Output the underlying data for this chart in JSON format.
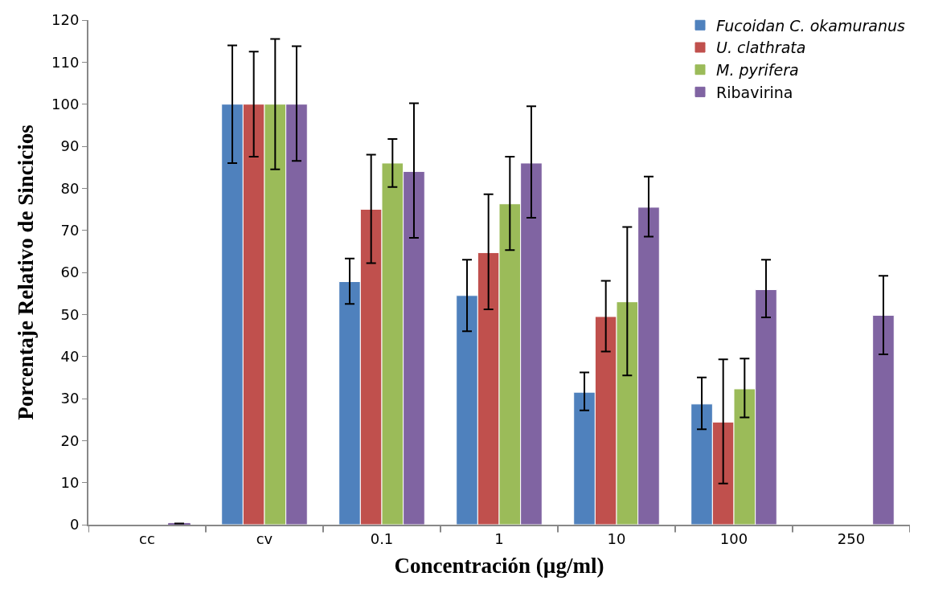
{
  "chart_data": {
    "type": "bar",
    "xlabel": "Concentración (µg/ml)",
    "ylabel": "Porcentaje Relativo de Sincicios",
    "categories": [
      "cc",
      "cv",
      "0.1",
      "1",
      "10",
      "100",
      "250"
    ],
    "series": [
      {
        "name": "Fucoidan C. okamuranus",
        "color": "#4f81bd",
        "values": [
          null,
          100,
          57.8,
          54.5,
          31.5,
          28.7,
          null
        ],
        "errors": [
          null,
          [
            86,
            114
          ],
          [
            52.5,
            63.3
          ],
          [
            46,
            63
          ],
          [
            27.2,
            36.2
          ],
          [
            22.7,
            35
          ],
          null
        ]
      },
      {
        "name": "U. clathrata",
        "color": "#c0504d",
        "values": [
          null,
          100,
          75,
          64.7,
          49.5,
          24.4,
          null
        ],
        "errors": [
          null,
          [
            87.5,
            112.5
          ],
          [
            62.2,
            88
          ],
          [
            51.2,
            78.6
          ],
          [
            41.2,
            58
          ],
          [
            9.8,
            39.3
          ],
          null
        ]
      },
      {
        "name": "M. pyrifera",
        "color": "#9bbb59",
        "values": [
          null,
          100,
          86,
          76.3,
          53,
          32.3,
          null
        ],
        "errors": [
          null,
          [
            84.5,
            115.5
          ],
          [
            80.3,
            91.7
          ],
          [
            65.3,
            87.5
          ],
          [
            35.5,
            70.8
          ],
          [
            25.5,
            39.5
          ],
          null
        ]
      },
      {
        "name": "Ribavirina",
        "color": "#8064a2",
        "values": [
          0.3,
          100,
          84,
          86,
          75.5,
          55.9,
          49.8
        ],
        "errors": [
          null,
          [
            86.5,
            113.8
          ],
          [
            68.2,
            100.2
          ],
          [
            73,
            99.5
          ],
          [
            68.5,
            82.8
          ],
          [
            49.3,
            63
          ],
          [
            40.5,
            59.2
          ]
        ]
      }
    ],
    "ylim": [
      0,
      120
    ],
    "yticks": [
      0,
      10,
      20,
      30,
      40,
      50,
      60,
      70,
      80,
      90,
      100,
      110,
      120
    ],
    "grid": false,
    "legend": "top right"
  }
}
